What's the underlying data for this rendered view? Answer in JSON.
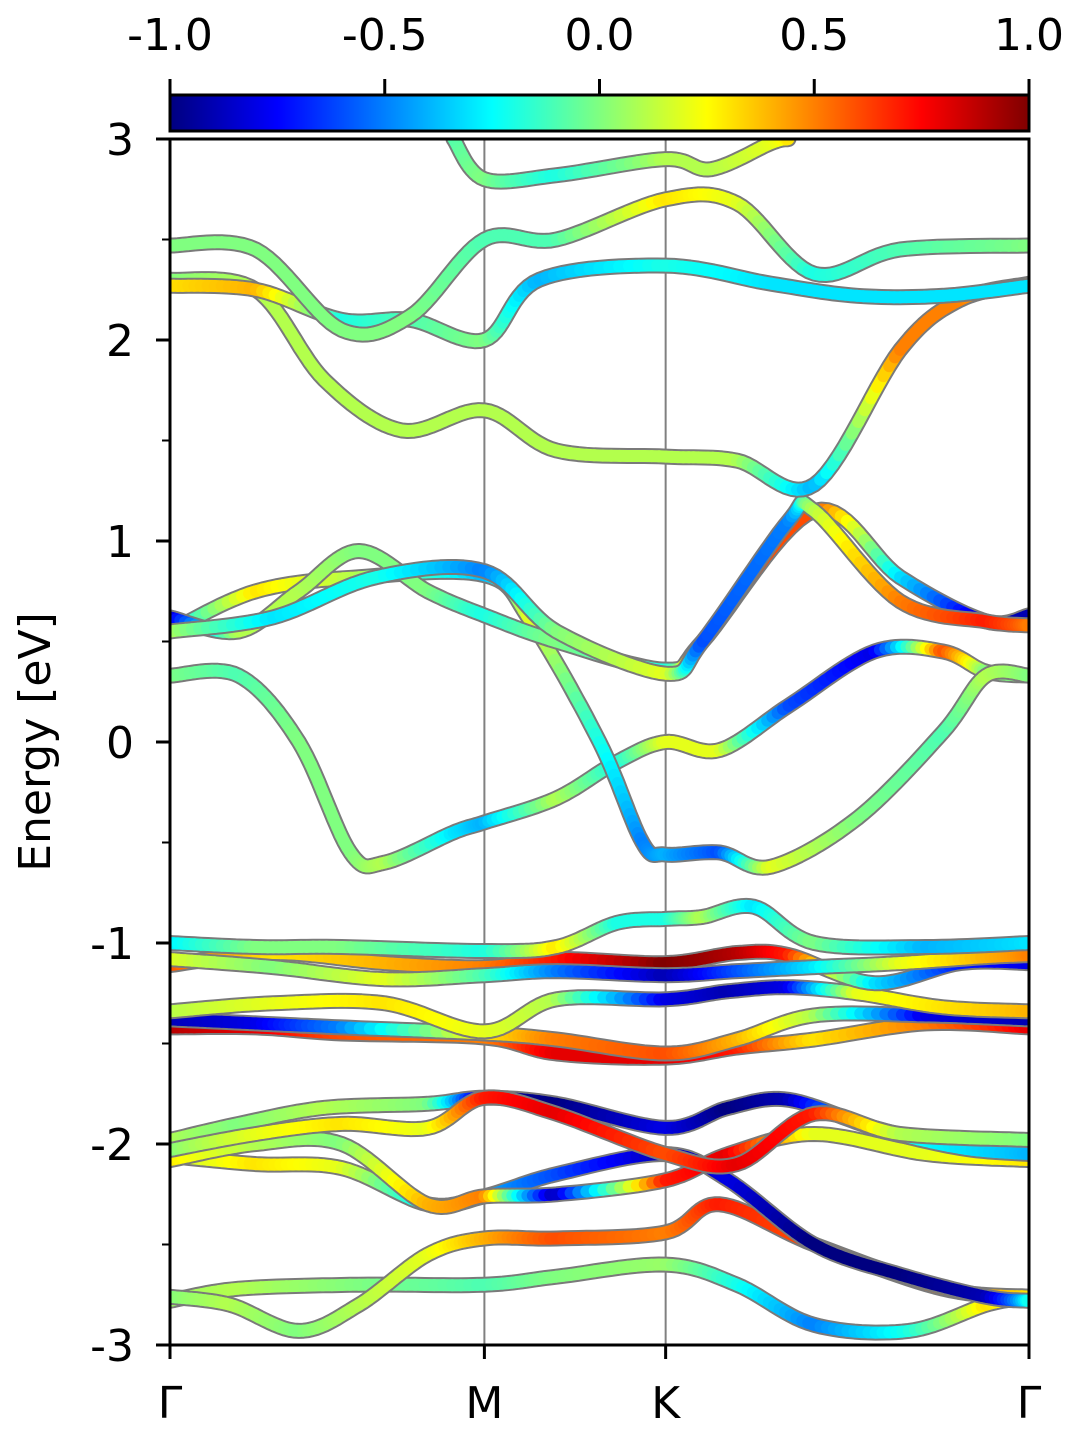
{
  "chart_data": {
    "type": "line",
    "title": "",
    "xlabel": "",
    "ylabel": "Energy [eV]",
    "ylim": [
      -3,
      3
    ],
    "y_ticks": [
      -3,
      -2,
      -1,
      0,
      1,
      2,
      3
    ],
    "y_tick_labels": [
      "-3",
      "-2",
      "-1",
      "0",
      "1",
      "2",
      "3"
    ],
    "k_points": [
      {
        "label": "Γ",
        "x": 0.0
      },
      {
        "label": "M",
        "x": 0.366
      },
      {
        "label": "K",
        "x": 0.577
      },
      {
        "label": "Γ",
        "x": 1.0
      }
    ],
    "colorbar": {
      "colormap": "jet",
      "range": [
        -1.0,
        1.0
      ],
      "ticks": [
        -1.0,
        -0.5,
        0.0,
        0.5,
        1.0
      ],
      "tick_labels": [
        "-1.0",
        "-0.5",
        "0.0",
        "0.5",
        "1.0"
      ]
    },
    "series": [
      {
        "points": [
          [
            0,
            -2.78
          ],
          [
            0.08,
            -2.72
          ],
          [
            0.22,
            -2.7
          ],
          [
            0.366,
            -2.7
          ],
          [
            0.45,
            -2.66
          ],
          [
            0.577,
            -2.6
          ],
          [
            0.66,
            -2.7
          ],
          [
            0.75,
            -2.9
          ],
          [
            0.86,
            -2.93
          ],
          [
            0.95,
            -2.8
          ],
          [
            1,
            -2.76
          ]
        ],
        "weights": [
          0.05,
          0.1,
          0.0,
          -0.1,
          0.0,
          0.05,
          -0.2,
          -0.5,
          -0.2,
          0.3,
          0.2
        ]
      },
      {
        "points": [
          [
            0,
            -2.76
          ],
          [
            0.07,
            -2.8
          ],
          [
            0.15,
            -2.93
          ],
          [
            0.22,
            -2.8
          ],
          [
            0.3,
            -2.55
          ],
          [
            0.366,
            -2.47
          ],
          [
            0.45,
            -2.47
          ],
          [
            0.577,
            -2.44
          ],
          [
            0.64,
            -2.3
          ],
          [
            0.75,
            -2.5
          ],
          [
            0.9,
            -2.72
          ],
          [
            1,
            -2.76
          ]
        ],
        "weights": [
          0.0,
          0.1,
          0.0,
          0.1,
          0.2,
          0.4,
          0.6,
          0.5,
          0.7,
          0.6,
          0.5,
          0.3
        ]
      },
      {
        "points": [
          [
            0,
            -2.06
          ],
          [
            0.1,
            -2.1
          ],
          [
            0.2,
            -2.12
          ],
          [
            0.3,
            -2.3
          ],
          [
            0.366,
            -2.26
          ],
          [
            0.45,
            -2.15
          ],
          [
            0.577,
            -2.05
          ],
          [
            0.65,
            -2.18
          ],
          [
            0.75,
            -2.5
          ],
          [
            0.85,
            -2.65
          ],
          [
            0.95,
            -2.76
          ],
          [
            1,
            -2.78
          ]
        ],
        "weights": [
          0.1,
          0.3,
          0.2,
          -0.3,
          -0.4,
          -0.6,
          -0.9,
          -0.8,
          -1.0,
          -1.0,
          -0.9,
          -0.2
        ]
      },
      {
        "points": [
          [
            0,
            -2.08
          ],
          [
            0.1,
            -2.0
          ],
          [
            0.2,
            -2.0
          ],
          [
            0.3,
            -2.3
          ],
          [
            0.366,
            -2.26
          ],
          [
            0.45,
            -2.25
          ],
          [
            0.577,
            -2.18
          ],
          [
            0.65,
            -2.05
          ],
          [
            0.75,
            -1.95
          ],
          [
            0.88,
            -2.05
          ],
          [
            1,
            -2.08
          ]
        ],
        "weights": [
          0.3,
          0.1,
          0.0,
          0.4,
          0.5,
          -0.9,
          0.7,
          0.8,
          0.2,
          0.2,
          0.3
        ]
      },
      {
        "points": [
          [
            0,
            -1.98
          ],
          [
            0.08,
            -1.9
          ],
          [
            0.18,
            -1.82
          ],
          [
            0.3,
            -1.8
          ],
          [
            0.366,
            -1.77
          ],
          [
            0.45,
            -1.8
          ],
          [
            0.577,
            -1.92
          ],
          [
            0.65,
            -1.82
          ],
          [
            0.72,
            -1.78
          ],
          [
            0.82,
            -1.92
          ],
          [
            0.92,
            -2.02
          ],
          [
            1,
            -2.05
          ]
        ],
        "weights": [
          0.1,
          0.0,
          0.1,
          0.0,
          -0.9,
          -1.0,
          -0.8,
          -1.0,
          -0.9,
          -0.2,
          -0.3,
          -0.4
        ]
      },
      {
        "points": [
          [
            0,
            -2.03
          ],
          [
            0.1,
            -1.95
          ],
          [
            0.2,
            -1.9
          ],
          [
            0.3,
            -1.92
          ],
          [
            0.366,
            -1.77
          ],
          [
            0.45,
            -1.85
          ],
          [
            0.577,
            -2.05
          ],
          [
            0.66,
            -2.1
          ],
          [
            0.75,
            -1.85
          ],
          [
            0.85,
            -1.95
          ],
          [
            1,
            -1.98
          ]
        ],
        "weights": [
          0.0,
          0.2,
          0.3,
          0.2,
          0.7,
          0.8,
          0.6,
          0.8,
          0.7,
          0.1,
          0.0
        ]
      },
      {
        "points": [
          [
            0,
            -1.42
          ],
          [
            0.1,
            -1.42
          ],
          [
            0.2,
            -1.45
          ],
          [
            0.366,
            -1.47
          ],
          [
            0.45,
            -1.55
          ],
          [
            0.577,
            -1.57
          ],
          [
            0.66,
            -1.52
          ],
          [
            0.75,
            -1.48
          ],
          [
            0.88,
            -1.4
          ],
          [
            1,
            -1.42
          ]
        ],
        "weights": [
          0.9,
          0.8,
          0.6,
          0.5,
          0.8,
          0.8,
          0.7,
          0.3,
          0.5,
          0.8
        ]
      },
      {
        "points": [
          [
            0,
            -1.38
          ],
          [
            0.1,
            -1.4
          ],
          [
            0.2,
            -1.42
          ],
          [
            0.366,
            -1.45
          ],
          [
            0.45,
            -1.48
          ],
          [
            0.577,
            -1.55
          ],
          [
            0.66,
            -1.48
          ],
          [
            0.75,
            -1.36
          ],
          [
            0.88,
            -1.36
          ],
          [
            1,
            -1.38
          ]
        ],
        "weights": [
          -0.9,
          -0.8,
          -0.5,
          0.3,
          0.5,
          0.6,
          0.4,
          0.1,
          -0.8,
          -0.9
        ]
      },
      {
        "points": [
          [
            0,
            -1.34
          ],
          [
            0.12,
            -1.3
          ],
          [
            0.25,
            -1.3
          ],
          [
            0.366,
            -1.44
          ],
          [
            0.45,
            -1.28
          ],
          [
            0.577,
            -1.28
          ],
          [
            0.65,
            -1.24
          ],
          [
            0.72,
            -1.22
          ],
          [
            0.8,
            -1.25
          ],
          [
            0.9,
            -1.32
          ],
          [
            1,
            -1.34
          ]
        ],
        "weights": [
          0.1,
          0.2,
          0.3,
          0.2,
          0.1,
          -0.8,
          -0.9,
          -0.8,
          0.2,
          0.3,
          0.4
        ]
      },
      {
        "points": [
          [
            0,
            -1.11
          ],
          [
            0.12,
            -1.05
          ],
          [
            0.25,
            -1.1
          ],
          [
            0.366,
            -1.12
          ],
          [
            0.45,
            -1.08
          ],
          [
            0.577,
            -1.1
          ],
          [
            0.66,
            -1.05
          ],
          [
            0.72,
            -1.06
          ],
          [
            0.82,
            -1.2
          ],
          [
            0.92,
            -1.1
          ],
          [
            1,
            -1.1
          ]
        ],
        "weights": [
          0.6,
          0.3,
          0.4,
          0.5,
          0.7,
          1.0,
          0.9,
          0.7,
          -0.3,
          -0.7,
          -0.8
        ]
      },
      {
        "points": [
          [
            0,
            -1.08
          ],
          [
            0.12,
            -1.12
          ],
          [
            0.25,
            -1.18
          ],
          [
            0.366,
            -1.16
          ],
          [
            0.45,
            -1.14
          ],
          [
            0.577,
            -1.16
          ],
          [
            0.66,
            -1.14
          ],
          [
            0.75,
            -1.12
          ],
          [
            0.85,
            -1.1
          ],
          [
            0.95,
            -1.07
          ],
          [
            1,
            -1.06
          ]
        ],
        "weights": [
          0.2,
          0.0,
          0.2,
          -0.1,
          -0.5,
          -0.9,
          -0.6,
          -0.3,
          0.2,
          0.4,
          0.5
        ]
      },
      {
        "points": [
          [
            0,
            -1.0
          ],
          [
            0.1,
            -1.02
          ],
          [
            0.2,
            -1.02
          ],
          [
            0.366,
            -1.04
          ],
          [
            0.45,
            -1.02
          ],
          [
            0.52,
            -0.9
          ],
          [
            0.577,
            -0.88
          ],
          [
            0.62,
            -0.87
          ],
          [
            0.68,
            -0.82
          ],
          [
            0.75,
            -1.0
          ],
          [
            0.88,
            -1.02
          ],
          [
            1,
            -1.0
          ]
        ],
        "weights": [
          -0.3,
          0.0,
          0.0,
          -0.2,
          0.3,
          -0.2,
          -0.2,
          0.1,
          -0.3,
          0.0,
          -0.4,
          -0.3
        ]
      },
      {
        "points": [
          [
            0,
            0.33
          ],
          [
            0.08,
            0.33
          ],
          [
            0.15,
            0.0
          ],
          [
            0.21,
            -0.55
          ],
          [
            0.25,
            -0.6
          ],
          [
            0.33,
            -0.45
          ],
          [
            0.366,
            -0.4
          ],
          [
            0.45,
            -0.28
          ],
          [
            0.52,
            -0.1
          ],
          [
            0.577,
            0.0
          ],
          [
            0.64,
            -0.04
          ],
          [
            0.72,
            0.18
          ],
          [
            0.82,
            0.45
          ],
          [
            0.9,
            0.45
          ],
          [
            0.95,
            0.35
          ],
          [
            1,
            0.33
          ]
        ],
        "weights": [
          0.0,
          -0.1,
          0.0,
          0.0,
          0.1,
          -0.3,
          -0.4,
          0.1,
          -0.2,
          0.2,
          0.2,
          -0.6,
          -0.8,
          0.6,
          0.0,
          0.0
        ]
      },
      {
        "points": [
          [
            0,
            0.55
          ],
          [
            0.1,
            0.75
          ],
          [
            0.22,
            0.82
          ],
          [
            0.366,
            0.83
          ],
          [
            0.42,
            0.6
          ],
          [
            0.5,
            0.0
          ],
          [
            0.55,
            -0.5
          ],
          [
            0.577,
            -0.56
          ],
          [
            0.64,
            -0.55
          ],
          [
            0.7,
            -0.62
          ],
          [
            0.8,
            -0.38
          ],
          [
            0.9,
            0.05
          ],
          [
            0.95,
            0.33
          ],
          [
            1,
            0.33
          ]
        ],
        "weights": [
          -0.4,
          0.3,
          0.1,
          -0.4,
          0.2,
          -0.2,
          -0.5,
          -0.4,
          -0.6,
          0.2,
          0.0,
          -0.1,
          0.1,
          0.0
        ]
      },
      {
        "points": [
          [
            0,
            0.62
          ],
          [
            0.08,
            0.55
          ],
          [
            0.15,
            0.75
          ],
          [
            0.22,
            0.95
          ],
          [
            0.3,
            0.75
          ],
          [
            0.366,
            0.63
          ],
          [
            0.45,
            0.5
          ],
          [
            0.577,
            0.36
          ],
          [
            0.62,
            0.5
          ],
          [
            0.75,
            1.15
          ],
          [
            0.85,
            0.82
          ],
          [
            0.95,
            0.6
          ],
          [
            1,
            0.63
          ]
        ],
        "weights": [
          -0.9,
          0.1,
          0.1,
          0.0,
          0.0,
          -0.2,
          0.0,
          -0.2,
          0.6,
          0.6,
          -0.3,
          -0.9,
          -0.9
        ]
      },
      {
        "points": [
          [
            0,
            0.55
          ],
          [
            0.12,
            0.62
          ],
          [
            0.24,
            0.82
          ],
          [
            0.366,
            0.85
          ],
          [
            0.45,
            0.55
          ],
          [
            0.577,
            0.34
          ],
          [
            0.62,
            0.5
          ],
          [
            0.72,
            1.1
          ],
          [
            0.75,
            1.15
          ],
          [
            0.85,
            0.7
          ],
          [
            0.95,
            0.6
          ],
          [
            1,
            0.58
          ]
        ],
        "weights": [
          0.1,
          -0.3,
          -0.2,
          -0.5,
          0.0,
          0.2,
          -0.6,
          -0.5,
          0.1,
          0.5,
          0.7,
          0.5
        ]
      },
      {
        "points": [
          [
            0,
            2.3
          ],
          [
            0.1,
            2.25
          ],
          [
            0.18,
            1.8
          ],
          [
            0.27,
            1.55
          ],
          [
            0.366,
            1.65
          ],
          [
            0.45,
            1.45
          ],
          [
            0.577,
            1.42
          ],
          [
            0.66,
            1.4
          ],
          [
            0.75,
            1.28
          ],
          [
            0.85,
            1.95
          ],
          [
            0.92,
            2.2
          ],
          [
            1,
            2.28
          ]
        ],
        "weights": [
          0.0,
          0.1,
          0.1,
          0.1,
          0.1,
          0.1,
          0.1,
          0.1,
          -0.4,
          0.5,
          0.5,
          0.3
        ]
      },
      {
        "points": [
          [
            0,
            2.27
          ],
          [
            0.1,
            2.25
          ],
          [
            0.2,
            2.1
          ],
          [
            0.28,
            2.1
          ],
          [
            0.366,
            2.0
          ],
          [
            0.43,
            2.3
          ],
          [
            0.577,
            2.37
          ],
          [
            0.7,
            2.28
          ],
          [
            0.8,
            2.22
          ],
          [
            0.9,
            2.22
          ],
          [
            1,
            2.27
          ]
        ],
        "weights": [
          0.3,
          0.4,
          -0.2,
          -0.1,
          0.0,
          -0.4,
          -0.2,
          -0.3,
          -0.3,
          -0.3,
          -0.3
        ]
      },
      {
        "points": [
          [
            0,
            2.47
          ],
          [
            0.1,
            2.45
          ],
          [
            0.2,
            2.05
          ],
          [
            0.28,
            2.12
          ],
          [
            0.366,
            2.5
          ],
          [
            0.45,
            2.5
          ],
          [
            0.577,
            2.7
          ],
          [
            0.66,
            2.68
          ],
          [
            0.75,
            2.33
          ],
          [
            0.85,
            2.45
          ],
          [
            1,
            2.47
          ]
        ],
        "weights": [
          0.0,
          0.0,
          0.0,
          0.0,
          -0.1,
          -0.1,
          0.3,
          0.2,
          -0.2,
          -0.1,
          0.0
        ]
      },
      {
        "points": [
          [
            0.33,
            3.0
          ],
          [
            0.366,
            2.8
          ],
          [
            0.45,
            2.82
          ],
          [
            0.577,
            2.9
          ],
          [
            0.63,
            2.85
          ],
          [
            0.7,
            2.98
          ],
          [
            0.72,
            3.0
          ]
        ],
        "weights": [
          -0.1,
          0.0,
          -0.2,
          0.1,
          0.1,
          0.2,
          0.3
        ]
      }
    ]
  }
}
